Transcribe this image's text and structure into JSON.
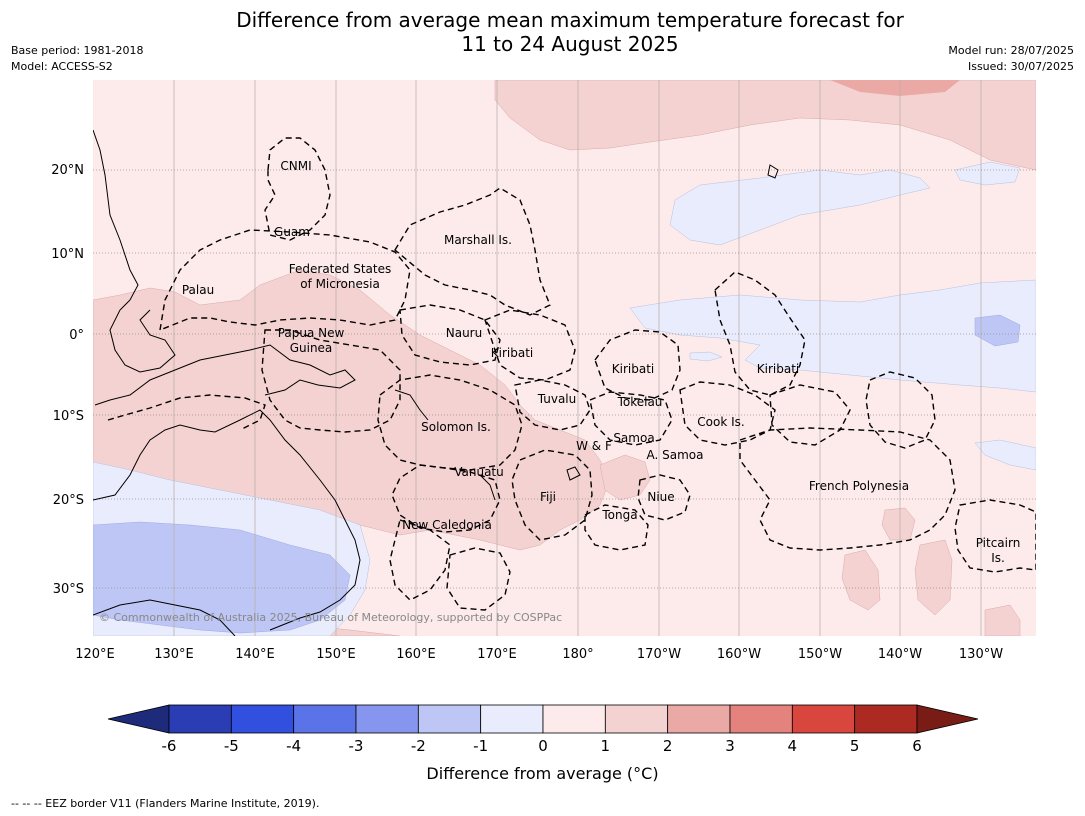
{
  "title": {
    "line1": "Difference from average mean maximum temperature forecast for",
    "line2": "11 to 24 August 2025"
  },
  "meta": {
    "base_period": "Base period: 1981-2018",
    "model": "Model: ACCESS-S2",
    "model_run": "Model run: 28/07/2025",
    "issued": "Issued: 30/07/2025"
  },
  "axes": {
    "lon_ticks": [
      "120°E",
      "130°E",
      "140°E",
      "150°E",
      "160°E",
      "170°E",
      "180°",
      "170°W",
      "160°W",
      "150°W",
      "140°W",
      "130°W"
    ],
    "lat_ticks": [
      "20°N",
      "10°N",
      "0°",
      "10°S",
      "20°S",
      "30°S"
    ]
  },
  "labels": {
    "cnmi": "CNMI",
    "guam": "Guam",
    "marshall": "Marshall Is.",
    "fsm_1": "Federated States",
    "fsm_2": "of Micronesia",
    "palau": "Palau",
    "png_1": "Papua New",
    "png_2": "Guinea",
    "nauru": "Nauru",
    "kiribati_w": "Kiribati",
    "kiribati_c": "Kiribati",
    "kiribati_e": "Kiribati",
    "tuvalu": "Tuvalu",
    "tokelau": "Tokelau",
    "solomon": "Solomon Is.",
    "cook": "Cook Is.",
    "samoa": "Samoa",
    "wf": "W & F",
    "asamoa": "A. Samoa",
    "vanuatu": "Vanuatu",
    "fiji": "Fiji",
    "niue": "Niue",
    "tonga": "Tonga",
    "new_caledonia": "New Caledonia",
    "french_polynesia": "French Polynesia",
    "pitcairn_1": "Pitcairn",
    "pitcairn_2": "Is."
  },
  "copyright": "© Commonwealth of Australia 2025, Bureau of Meteorology, supported by COSPPac",
  "colorbar": {
    "title": "Difference from average (°C)",
    "ticks": [
      "-6",
      "-5",
      "-4",
      "-3",
      "-2",
      "-1",
      "0",
      "1",
      "2",
      "3",
      "4",
      "5",
      "6"
    ],
    "colors": {
      "below_min": "#1e2a7a",
      "bins": [
        "#2a3db5",
        "#3150e0",
        "#5a73e8",
        "#8696ee",
        "#bdc6f4",
        "#e8ecfc",
        "#fcebea",
        "#f5d2d2",
        "#eba9a6",
        "#e4837d",
        "#d9463e",
        "#ad2a22"
      ],
      "above_max": "#7a1c16"
    }
  },
  "footnote": "--  --  -- EEZ border V11 (Flanders Marine Institute, 2019)."
}
